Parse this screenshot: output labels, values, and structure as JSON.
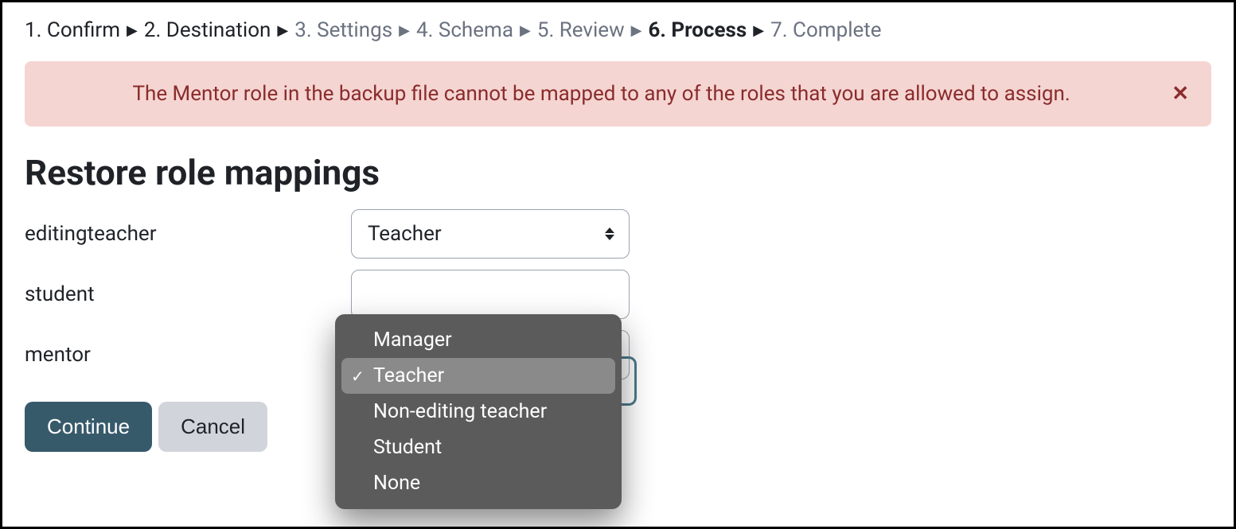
{
  "breadcrumb": {
    "steps": [
      {
        "label": "1. Confirm",
        "state": "past"
      },
      {
        "label": "2. Destination",
        "state": "past"
      },
      {
        "label": "3. Settings",
        "state": "future"
      },
      {
        "label": "4. Schema",
        "state": "future"
      },
      {
        "label": "5. Review",
        "state": "future"
      },
      {
        "label": "6. Process",
        "state": "current"
      },
      {
        "label": "7. Complete",
        "state": "future"
      }
    ],
    "separator": "▶"
  },
  "alert": {
    "message": "The Mentor role in the backup file cannot be mapped to any of the roles that you are allowed to assign.",
    "close_glyph": "✕",
    "background_color": "#f5d5d2",
    "text_color": "#8a2c2c"
  },
  "heading": "Restore role mappings",
  "rows": [
    {
      "label": "editingteacher",
      "selected": "Teacher"
    },
    {
      "label": "student",
      "selected": ""
    },
    {
      "label": "mentor",
      "selected": ""
    }
  ],
  "dropdown": {
    "open_on_row_index": 1,
    "selected_index": 1,
    "options": [
      "Manager",
      "Teacher",
      "Non-editing teacher",
      "Student",
      "None"
    ],
    "check_glyph": "✓",
    "background_color": "#5b5b5b",
    "highlight_color": "#8a8a8a",
    "text_color": "#ffffff"
  },
  "buttons": {
    "continue": "Continue",
    "cancel": "Cancel",
    "primary_bg": "#375a6b",
    "secondary_bg": "#d1d5db"
  }
}
